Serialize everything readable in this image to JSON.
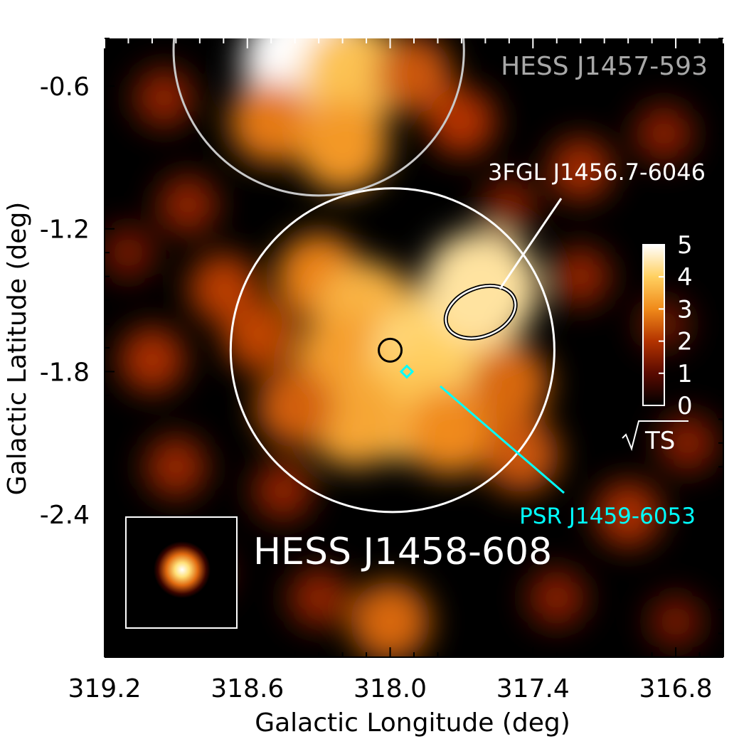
{
  "chart_data": {
    "type": "heatmap",
    "title": "",
    "xlabel": "Galactic Longitude (deg)",
    "ylabel": "Galactic Latitude (deg)",
    "xlim": [
      319.2,
      316.6
    ],
    "ylim": [
      -3.0,
      -0.4
    ],
    "x_ticks": [
      "319.2",
      "318.6",
      "318.0",
      "317.4",
      "316.8"
    ],
    "y_ticks": [
      "-0.6",
      "-1.2",
      "-1.8",
      "-2.4"
    ],
    "x_tick_values": [
      319.2,
      318.6,
      318.0,
      317.4,
      316.8
    ],
    "y_tick_values": [
      -0.6,
      -1.2,
      -1.8,
      -2.4
    ],
    "colorbar": {
      "label": "√TS",
      "min": 0,
      "max": 5,
      "ticks": [
        "0",
        "1",
        "2",
        "3",
        "4",
        "5"
      ]
    },
    "sources": [
      {
        "name": "HESS J1457-593",
        "kind": "circle",
        "center_l": 318.3,
        "center_b": -0.45,
        "radius_deg": 0.61,
        "color": "#c8c8c8"
      },
      {
        "name": "HESS J1458-608",
        "kind": "circle",
        "center_l": 317.99,
        "center_b": -1.71,
        "radius_deg": 0.68,
        "color": "#ffffff"
      },
      {
        "name": "3FGL J1456.7-6046",
        "kind": "ellipse",
        "center_l": 317.62,
        "center_b": -1.55,
        "color": "#ffffff"
      },
      {
        "name": "PSR J1459-6053",
        "kind": "diamond",
        "center_l": 317.93,
        "center_b": -1.8,
        "color": "#00ffff"
      },
      {
        "name": "",
        "kind": "small-circle",
        "center_l": 318.0,
        "center_b": -1.71,
        "color": "#000000"
      }
    ],
    "labels": {
      "hess_north": "HESS J1457-593",
      "fermi": "3FGL J1456.7-6046",
      "pulsar": "PSR J1459-6053",
      "hess_main": "HESS J1458-608"
    },
    "blobs": [
      {
        "l": 318.35,
        "b": -0.5,
        "level": 5.0
      },
      {
        "l": 318.15,
        "b": -0.55,
        "level": 3.8
      },
      {
        "l": 318.5,
        "b": -0.75,
        "level": 2.8
      },
      {
        "l": 318.2,
        "b": -0.85,
        "level": 3.2
      },
      {
        "l": 317.9,
        "b": -0.55,
        "level": 2.4
      },
      {
        "l": 317.7,
        "b": -0.75,
        "level": 2.0
      },
      {
        "l": 318.95,
        "b": -0.65,
        "level": 1.6
      },
      {
        "l": 317.2,
        "b": -0.95,
        "level": 1.8
      },
      {
        "l": 316.85,
        "b": -0.8,
        "level": 1.5
      },
      {
        "l": 318.3,
        "b": -1.4,
        "level": 2.9
      },
      {
        "l": 318.1,
        "b": -1.55,
        "level": 3.6
      },
      {
        "l": 318.2,
        "b": -1.75,
        "level": 3.3
      },
      {
        "l": 317.85,
        "b": -1.75,
        "level": 4.2
      },
      {
        "l": 317.7,
        "b": -1.6,
        "level": 4.0
      },
      {
        "l": 317.62,
        "b": -1.45,
        "level": 4.4
      },
      {
        "l": 317.95,
        "b": -1.95,
        "level": 3.9
      },
      {
        "l": 318.15,
        "b": -2.0,
        "level": 3.4
      },
      {
        "l": 317.75,
        "b": -2.05,
        "level": 3.0
      },
      {
        "l": 318.4,
        "b": -1.95,
        "level": 2.5
      },
      {
        "l": 318.55,
        "b": -1.65,
        "level": 2.2
      },
      {
        "l": 317.45,
        "b": -2.15,
        "level": 2.4
      },
      {
        "l": 317.5,
        "b": -1.85,
        "level": 2.6
      },
      {
        "l": 318.7,
        "b": -1.45,
        "level": 2.1
      },
      {
        "l": 319.0,
        "b": -1.75,
        "level": 1.9
      },
      {
        "l": 318.9,
        "b": -2.2,
        "level": 1.7
      },
      {
        "l": 318.45,
        "b": -2.3,
        "level": 1.6
      },
      {
        "l": 318.0,
        "b": -2.85,
        "level": 2.6
      },
      {
        "l": 318.3,
        "b": -2.75,
        "level": 1.6
      },
      {
        "l": 317.0,
        "b": -2.4,
        "level": 1.9
      },
      {
        "l": 316.75,
        "b": -2.1,
        "level": 1.5
      },
      {
        "l": 317.2,
        "b": -1.4,
        "level": 1.6
      },
      {
        "l": 316.85,
        "b": -1.6,
        "level": 1.2
      },
      {
        "l": 318.8,
        "b": -2.65,
        "level": 1.4
      },
      {
        "l": 317.3,
        "b": -2.75,
        "level": 1.5
      },
      {
        "l": 316.8,
        "b": -2.85,
        "level": 1.3
      },
      {
        "l": 318.85,
        "b": -1.1,
        "level": 1.6
      },
      {
        "l": 319.1,
        "b": -1.3,
        "level": 1.3
      },
      {
        "l": 317.5,
        "b": -1.1,
        "level": 1.4
      }
    ],
    "psf_inset": {
      "center_l": 318.95,
      "center_b": -2.6
    }
  }
}
